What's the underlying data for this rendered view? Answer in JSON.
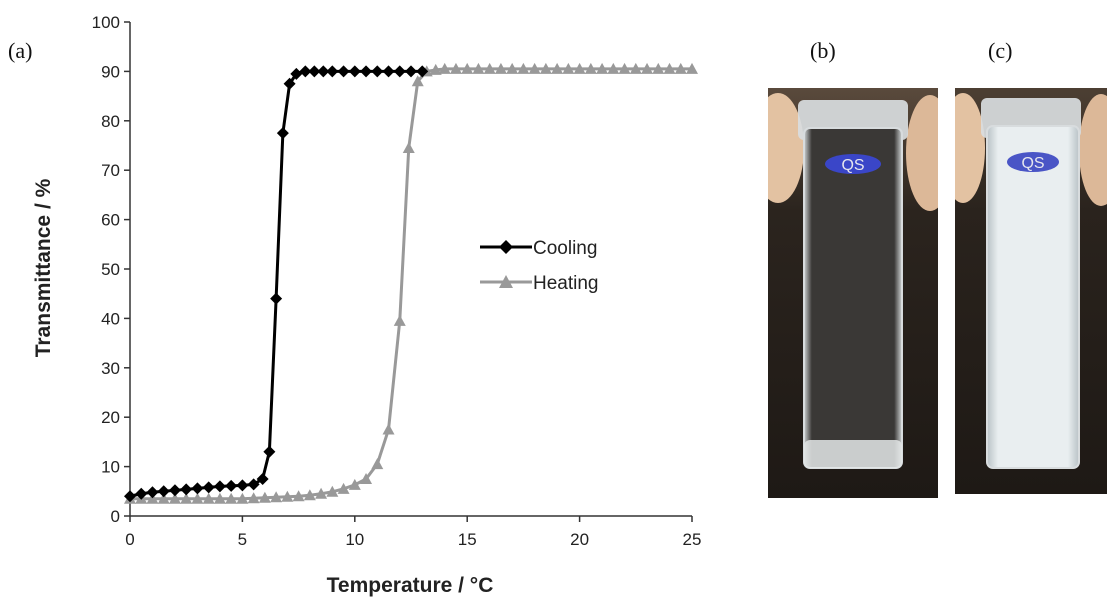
{
  "panels": {
    "a": "(a)",
    "b": "(b)",
    "c": "(c)"
  },
  "chart_data": {
    "type": "line",
    "title": "",
    "xlabel": "Temperature / °C",
    "ylabel": "Transmittance / %",
    "xlim": [
      0,
      25
    ],
    "ylim": [
      0,
      100
    ],
    "x_ticks": [
      "0",
      "5",
      "10",
      "15",
      "20",
      "25"
    ],
    "y_ticks": [
      "0",
      "10",
      "20",
      "30",
      "40",
      "50",
      "60",
      "70",
      "80",
      "90",
      "100"
    ],
    "grid": false,
    "legend_position": "center-right",
    "series": [
      {
        "name": "Cooling",
        "color": "#000000",
        "marker": "diamond",
        "x": [
          0.0,
          0.5,
          1.0,
          1.5,
          2.0,
          2.5,
          3.0,
          3.5,
          4.0,
          4.5,
          5.0,
          5.5,
          5.9,
          6.2,
          6.5,
          6.8,
          7.1,
          7.4,
          7.8,
          8.2,
          8.6,
          9.0,
          9.5,
          10.0,
          10.5,
          11.0,
          11.5,
          12.0,
          12.5,
          13.0
        ],
        "y": [
          4.0,
          4.5,
          4.8,
          5.0,
          5.2,
          5.4,
          5.6,
          5.8,
          6.0,
          6.1,
          6.2,
          6.4,
          7.5,
          13.0,
          44.0,
          77.5,
          87.5,
          89.5,
          90.0,
          90.0,
          90.0,
          90.0,
          90.0,
          90.0,
          90.0,
          90.0,
          90.0,
          90.0,
          90.0,
          90.0
        ]
      },
      {
        "name": "Heating",
        "color": "#999999",
        "marker": "triangle",
        "x": [
          0.0,
          0.5,
          1.0,
          1.5,
          2.0,
          2.5,
          3.0,
          3.5,
          4.0,
          4.5,
          5.0,
          5.5,
          6.0,
          6.5,
          7.0,
          7.5,
          8.0,
          8.5,
          9.0,
          9.5,
          10.0,
          10.5,
          11.0,
          11.5,
          12.0,
          12.4,
          12.8,
          13.2,
          13.6,
          14.0,
          14.5,
          15.0,
          15.5,
          16.0,
          16.5,
          17.0,
          17.5,
          18.0,
          18.5,
          19.0,
          19.5,
          20.0,
          20.5,
          21.0,
          21.5,
          22.0,
          22.5,
          23.0,
          23.5,
          24.0,
          24.5,
          25.0
        ],
        "y": [
          3.5,
          3.5,
          3.5,
          3.5,
          3.5,
          3.5,
          3.5,
          3.5,
          3.5,
          3.5,
          3.5,
          3.6,
          3.7,
          3.8,
          3.9,
          4.0,
          4.2,
          4.5,
          4.9,
          5.5,
          6.3,
          7.5,
          10.5,
          17.5,
          39.5,
          74.5,
          88.0,
          90.0,
          90.3,
          90.5,
          90.5,
          90.5,
          90.5,
          90.5,
          90.5,
          90.5,
          90.5,
          90.5,
          90.5,
          90.5,
          90.5,
          90.5,
          90.5,
          90.5,
          90.5,
          90.5,
          90.5,
          90.5,
          90.5,
          90.5,
          90.5,
          90.5
        ]
      }
    ]
  },
  "photos": {
    "cuvette_label": "QS",
    "b_state": "transparent",
    "c_state": "turbid"
  }
}
